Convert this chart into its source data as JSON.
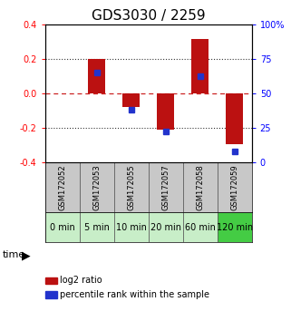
{
  "title": "GDS3030 / 2259",
  "samples": [
    "GSM172052",
    "GSM172053",
    "GSM172055",
    "GSM172057",
    "GSM172058",
    "GSM172059"
  ],
  "time_labels": [
    "0 min",
    "5 min",
    "10 min",
    "20 min",
    "60 min",
    "120 min"
  ],
  "log2_ratio": [
    0.0,
    0.2,
    -0.08,
    -0.21,
    0.315,
    -0.295
  ],
  "percentile_rank_pct": [
    null,
    65,
    38,
    22,
    62,
    8
  ],
  "ylim": [
    -0.4,
    0.4
  ],
  "yticks_left": [
    -0.4,
    -0.2,
    0.0,
    0.2,
    0.4
  ],
  "yticks_right": [
    0,
    25,
    50,
    75,
    100
  ],
  "ytick_labels_right": [
    "0",
    "25",
    "50",
    "75",
    "100%"
  ],
  "hlines": [
    0.2,
    -0.2
  ],
  "bar_color": "#bb1111",
  "dot_color": "#2233cc",
  "zero_line_color": "#cc2222",
  "hline_color": "#333333",
  "sample_bg_color": "#c8c8c8",
  "time_bg_colors": [
    "#c8eec8",
    "#c8eec8",
    "#c8eec8",
    "#c8eec8",
    "#c8eec8",
    "#44cc44"
  ],
  "legend_bar_label": "log2 ratio",
  "legend_dot_label": "percentile rank within the sample",
  "bar_width": 0.5,
  "title_fontsize": 11,
  "tick_fontsize": 7,
  "sample_fontsize": 6,
  "time_fontsize": 7,
  "legend_fontsize": 7
}
